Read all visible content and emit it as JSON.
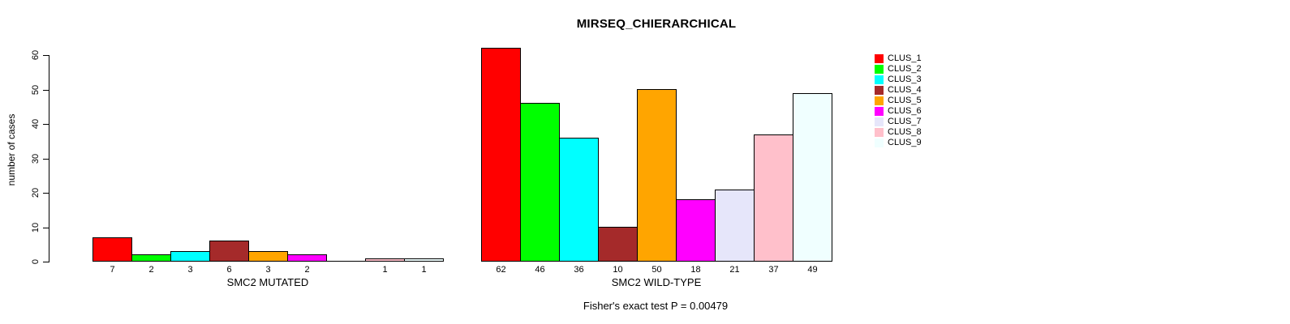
{
  "figure": {
    "title": "MIRSEQ_CHIERARCHICAL",
    "ylabel": "number of cases",
    "footnote": "Fisher's exact test P = 0.00479"
  },
  "chart_data": {
    "type": "bar",
    "title": "MIRSEQ_CHIERARCHICAL",
    "xlabel": "",
    "ylabel": "number of cases",
    "ylim": [
      0,
      60
    ],
    "yticks": [
      0,
      10,
      20,
      30,
      40,
      50,
      60
    ],
    "grid": false,
    "bar_borders_color": "#000000",
    "background_color": "#ffffff",
    "xlabel_groups": [
      "SMC2 MUTATED",
      "SMC2 WILD-TYPE"
    ],
    "legend": {
      "position": "right",
      "entries": [
        "CLUS_1",
        "CLUS_2",
        "CLUS_3",
        "CLUS_4",
        "CLUS_5",
        "CLUS_6",
        "CLUS_7",
        "CLUS_8",
        "CLUS_9"
      ]
    },
    "series": [
      {
        "name": "CLUS_1",
        "color": "#FF0000",
        "values": [
          7,
          62
        ]
      },
      {
        "name": "CLUS_2",
        "color": "#00FF00",
        "values": [
          2,
          46
        ]
      },
      {
        "name": "CLUS_3",
        "color": "#00FFFF",
        "values": [
          3,
          36
        ]
      },
      {
        "name": "CLUS_4",
        "color": "#A52A2A",
        "values": [
          6,
          10
        ]
      },
      {
        "name": "CLUS_5",
        "color": "#FFA500",
        "values": [
          3,
          50
        ]
      },
      {
        "name": "CLUS_6",
        "color": "#FF00FF",
        "values": [
          2,
          18
        ]
      },
      {
        "name": "CLUS_7",
        "color": "#E6E6FA",
        "values": [
          0,
          21
        ]
      },
      {
        "name": "CLUS_8",
        "color": "#FFC0CB",
        "values": [
          1,
          37
        ]
      },
      {
        "name": "CLUS_9",
        "color": "#F0FFFF",
        "values": [
          1,
          49
        ]
      }
    ],
    "annotation": "Fisher's exact test P = 0.00479"
  }
}
